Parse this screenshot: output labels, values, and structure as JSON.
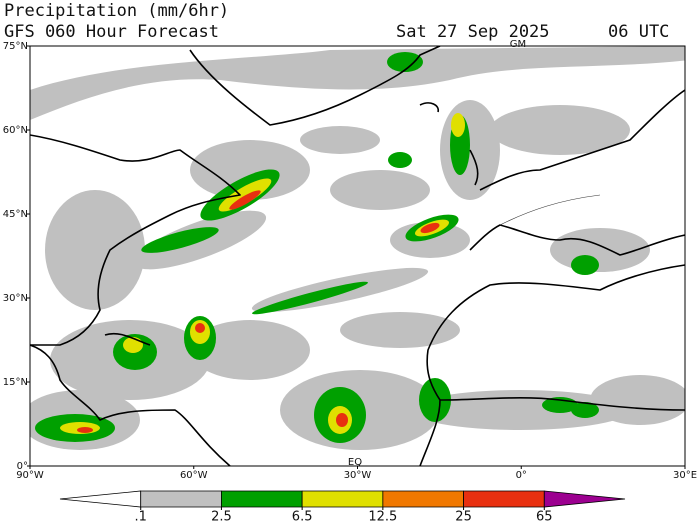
{
  "header": {
    "title": "Precipitation (mm/6hr)",
    "subtitle": "GFS 060 Hour Forecast",
    "date": "Sat 27 Sep 2025",
    "time": "06 UTC"
  },
  "map": {
    "lon_range": [
      -90,
      30
    ],
    "lat_range": [
      0,
      75
    ],
    "lat_labels": [
      {
        "value": 0,
        "label": "0°"
      },
      {
        "value": 15,
        "label": "15°N"
      },
      {
        "value": 30,
        "label": "30°N"
      },
      {
        "value": 45,
        "label": "45°N"
      },
      {
        "value": 60,
        "label": "60°N"
      },
      {
        "value": 75,
        "label": "75°N"
      }
    ],
    "lon_labels": [
      {
        "value": -90,
        "label": "90°W"
      },
      {
        "value": -60,
        "label": "60°W"
      },
      {
        "value": -30,
        "label": "30°W"
      },
      {
        "value": 0,
        "label": "0°"
      },
      {
        "value": 30,
        "label": "30°E"
      }
    ],
    "top_marker": "GM",
    "bottom_marker": "EQ"
  },
  "legend": {
    "levels": [
      {
        "value": 0.1,
        "label": ".1"
      },
      2.5,
      6.5,
      12.5,
      25,
      65
    ],
    "colors": [
      "#ffffff",
      "#c0c0c0",
      "#00a000",
      "#e0e000",
      "#f07800",
      "#e83010",
      "#9c0090"
    ]
  }
}
